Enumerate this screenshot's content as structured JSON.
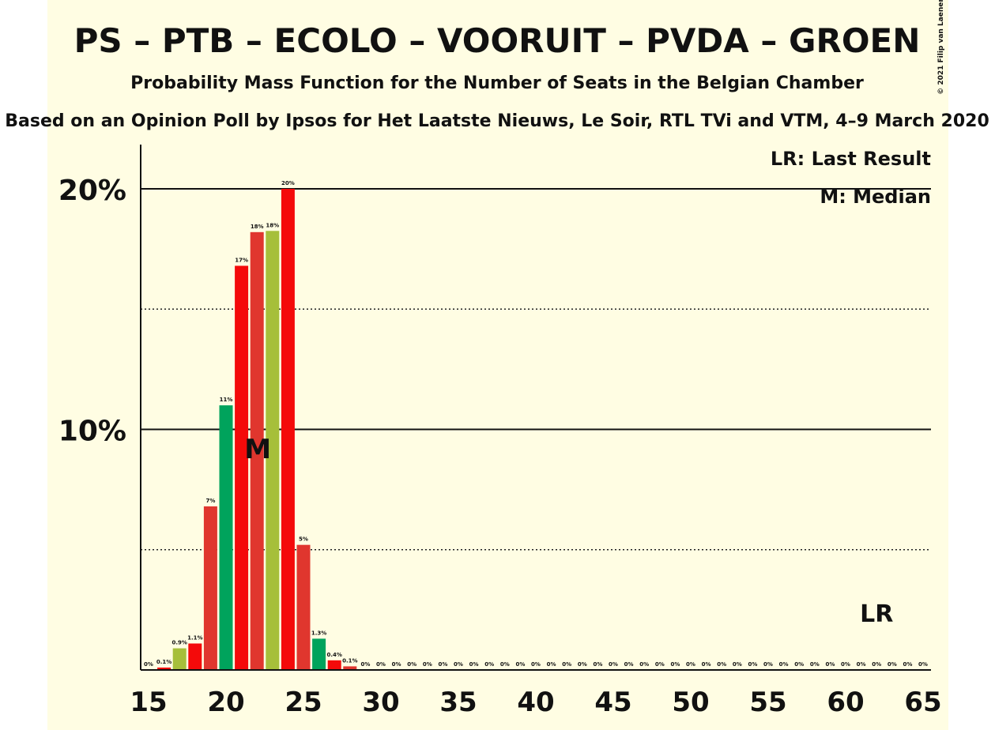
{
  "title": "PS – PTB – ECOLO – VOORUIT – PVDA – GROEN",
  "subtitle": "Probability Mass Function for the Number of Seats in the Belgian Chamber",
  "source_line": "Based on an Opinion Poll by Ipsos for Het Laatste Nieuws, Le Soir, RTL TVi and VTM, 4–9 March 2020",
  "copyright": "© 2021 Filip van Laenen",
  "legend": {
    "lr": "LR: Last Result",
    "median": "M: Median"
  },
  "markers": {
    "median_label": "M",
    "median_seat": 22,
    "last_result_label": "LR",
    "last_result_seat": 62
  },
  "colors": {
    "red": "#f40a0a",
    "red_dark": "#e0362e",
    "green": "#00a35c",
    "olive": "#a6bf3a",
    "background": "#fffde3"
  },
  "chart_data": {
    "type": "bar",
    "x": [
      15,
      16,
      17,
      18,
      19,
      20,
      21,
      22,
      23,
      24,
      25,
      26,
      27,
      28,
      29,
      30,
      31,
      32,
      33,
      34,
      35,
      36,
      37,
      38,
      39,
      40,
      41,
      42,
      43,
      44,
      45,
      46,
      47,
      48,
      49,
      50,
      51,
      52,
      53,
      54,
      55,
      56,
      57,
      58,
      59,
      60,
      61,
      62,
      63,
      64,
      65
    ],
    "values": [
      0,
      0.1,
      0.9,
      1.1,
      6.8,
      11.0,
      16.8,
      18.2,
      18.25,
      20.0,
      5.2,
      1.3,
      0.4,
      0.15,
      0,
      0,
      0,
      0,
      0,
      0,
      0,
      0,
      0,
      0,
      0,
      0,
      0,
      0,
      0,
      0,
      0,
      0,
      0,
      0,
      0,
      0,
      0,
      0,
      0,
      0,
      0,
      0,
      0,
      0,
      0,
      0,
      0,
      0,
      0,
      0,
      0
    ],
    "value_labels": [
      "0%",
      "0.1%",
      "0.9%",
      "1.1%",
      "7%",
      "11%",
      "17%",
      "18%",
      "18%",
      "20%",
      "5%",
      "1.3%",
      "0.4%",
      "0.1%",
      "0%",
      "0%",
      "0%",
      "0%",
      "0%",
      "0%",
      "0%",
      "0%",
      "0%",
      "0%",
      "0%",
      "0%",
      "0%",
      "0%",
      "0%",
      "0%",
      "0%",
      "0%",
      "0%",
      "0%",
      "0%",
      "0%",
      "0%",
      "0%",
      "0%",
      "0%",
      "0%",
      "0%",
      "0%",
      "0%",
      "0%",
      "0%",
      "0%",
      "0%",
      "0%",
      "0%",
      "0%"
    ],
    "bar_colors": [
      "red",
      "red",
      "olive",
      "red",
      "red_dark",
      "green",
      "red",
      "red_dark",
      "olive",
      "red",
      "red_dark",
      "green",
      "red",
      "red_dark",
      "red",
      "red",
      "red",
      "red",
      "red",
      "red",
      "red",
      "red",
      "red",
      "red",
      "red",
      "red",
      "red",
      "red",
      "red",
      "red",
      "red",
      "red",
      "red",
      "red",
      "red",
      "red",
      "red",
      "red",
      "red",
      "red",
      "red",
      "red",
      "red",
      "red",
      "red",
      "red",
      "red",
      "red",
      "red",
      "red",
      "red"
    ],
    "x_ticks": [
      15,
      20,
      25,
      30,
      35,
      40,
      45,
      50,
      55,
      60,
      65
    ],
    "y_ticks": [
      {
        "value": 10,
        "label": "10%"
      },
      {
        "value": 20,
        "label": "20%"
      }
    ],
    "dotted_gridlines": [
      5,
      15
    ],
    "xlim": [
      15,
      65
    ],
    "ylim": [
      0,
      21.8
    ],
    "xlabel": "",
    "ylabel": ""
  }
}
